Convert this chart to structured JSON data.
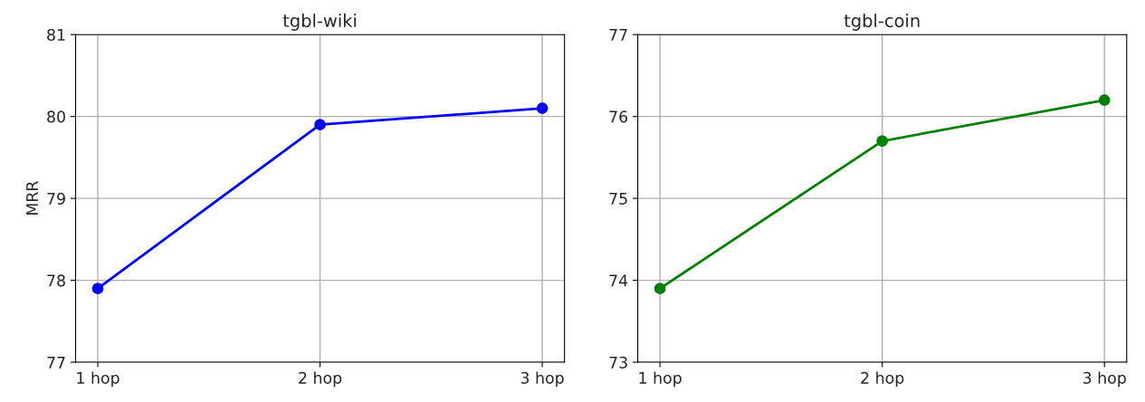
{
  "chart_data": [
    {
      "type": "line",
      "title": "tgbl-wiki",
      "ylabel": "MRR",
      "categories": [
        "1 hop",
        "2 hop",
        "3 hop"
      ],
      "series": [
        {
          "color": "#0000ff",
          "values": [
            77.9,
            79.9,
            80.1
          ]
        }
      ],
      "ylim": [
        77,
        81
      ],
      "yticks": [
        77,
        78,
        79,
        80,
        81
      ],
      "grid": true,
      "marker": "circle",
      "line_style": "solid"
    },
    {
      "type": "line",
      "title": "tgbl-coin",
      "categories": [
        "1 hop",
        "2 hop",
        "3 hop"
      ],
      "series": [
        {
          "color": "#008000",
          "values": [
            73.9,
            75.7,
            76.2
          ]
        }
      ],
      "ylim": [
        73,
        77
      ],
      "yticks": [
        73,
        74,
        75,
        76,
        77
      ],
      "grid": true,
      "marker": "circle",
      "line_style": "solid"
    }
  ]
}
